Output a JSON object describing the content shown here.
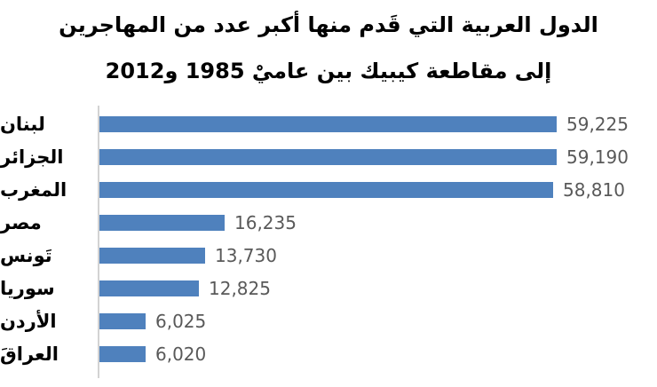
{
  "title": {
    "line1": "الدول العربية التي قَدم منها أكبر عدد من المهاجرين",
    "line2": "إلى مقاطعة كيبيك بين عاميْ 1985 و2012"
  },
  "chart_data": {
    "type": "bar",
    "orientation": "horizontal",
    "title": "الدول العربية التي قَدم منها أكبر عدد من المهاجرين إلى مقاطعة كيبيك بين عاميْ 1985 و2012",
    "categories": [
      "لبنان",
      "الجزائر",
      "المغرب",
      "مصر",
      "تَونس",
      "سوريا",
      "الأردن",
      "العراقَ"
    ],
    "values": [
      59225,
      59190,
      58810,
      16235,
      13730,
      12825,
      6025,
      6020
    ],
    "value_labels": [
      "59,225",
      "59,190",
      "58,810",
      "16,235",
      "13,730",
      "12,825",
      "6,025",
      "6,020"
    ],
    "xlabel": "",
    "ylabel": "",
    "xlim": [
      0,
      72000
    ],
    "grid": false,
    "legend": false,
    "bar_color": "#4f81bd",
    "value_label_color": "#595959",
    "axis_line_color": "#d3d3d3",
    "title_color": "#000000",
    "category_label_color": "#000000"
  }
}
